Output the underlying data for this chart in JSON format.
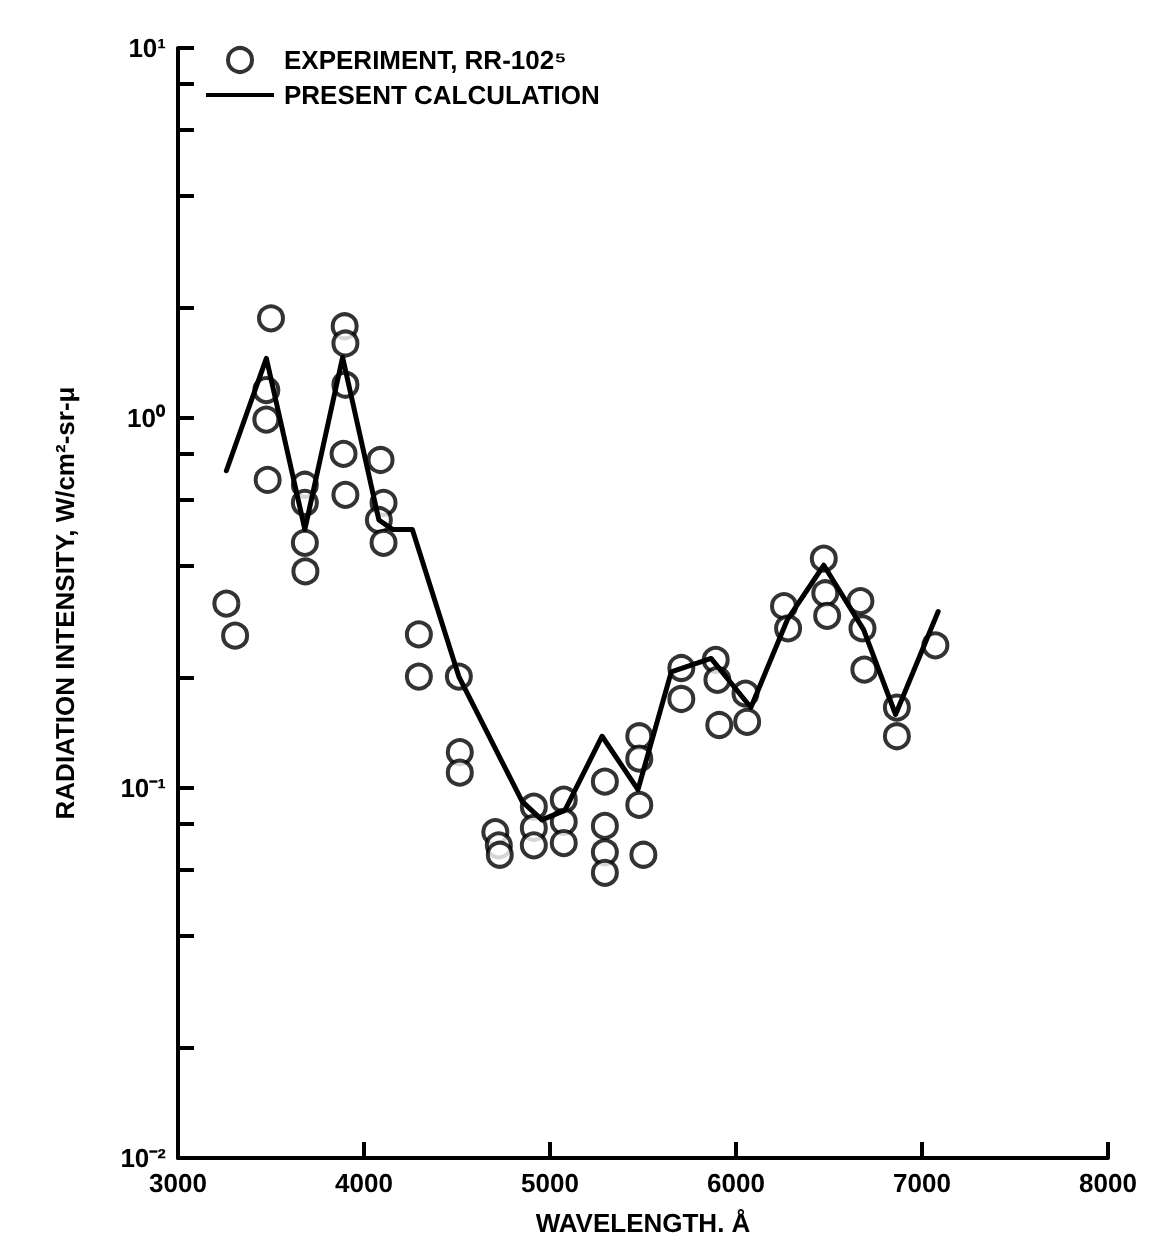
{
  "chart_data": {
    "type": "scatter",
    "xlabel": "WAVELENGTH. Å",
    "ylabel": "RADIATION INTENSITY, W/cm²-sr-μ",
    "log": "y",
    "grid": false,
    "legend": "top left",
    "xlim": [
      3000,
      8000
    ],
    "xticks": [
      3000,
      4000,
      5000,
      6000,
      7000,
      8000
    ],
    "ylim": [
      0.01,
      10
    ],
    "yticks": [
      {
        "value": 0.01,
        "label": "10⁻²"
      },
      {
        "value": 0.02,
        "label": null
      },
      {
        "value": 0.04,
        "label": null
      },
      {
        "value": 0.06,
        "label": null
      },
      {
        "value": 0.08,
        "label": null
      },
      {
        "value": 0.1,
        "label": "10⁻¹"
      },
      {
        "value": 0.2,
        "label": null
      },
      {
        "value": 0.4,
        "label": null
      },
      {
        "value": 0.6,
        "label": null
      },
      {
        "value": 0.8,
        "label": null
      },
      {
        "value": 1,
        "label": "10⁰"
      },
      {
        "value": 2,
        "label": null
      },
      {
        "value": 4,
        "label": null
      },
      {
        "value": 6,
        "label": null
      },
      {
        "value": 8,
        "label": null
      },
      {
        "value": 10,
        "label": "10¹"
      }
    ],
    "series": [
      {
        "name": "EXPERIMENT, RR-102⁵",
        "marker": "circle",
        "color": "#000000",
        "x": [
          3260,
          3307,
          3500,
          3475,
          3475,
          3482,
          3682,
          3682,
          3682,
          3685,
          3896,
          3900,
          3900,
          3890,
          3900,
          4089,
          4105,
          4080,
          4105,
          4295,
          4295,
          4510,
          4515,
          4515,
          4706,
          4725,
          4730,
          4913,
          4913,
          4913,
          5074,
          5074,
          5074,
          5295,
          5295,
          5295,
          5295,
          5502,
          5480,
          5480,
          5480,
          5706,
          5706,
          5891,
          5900,
          5910,
          6051,
          6060,
          6258,
          6280,
          6472,
          6480,
          6490,
          6669,
          6680,
          6690,
          6865,
          6865,
          7072
        ],
        "values": [
          0.315,
          0.258,
          1.86,
          1.19,
          0.99,
          0.68,
          0.66,
          0.59,
          0.46,
          0.385,
          1.77,
          1.59,
          1.23,
          0.8,
          0.62,
          0.77,
          0.59,
          0.53,
          0.46,
          0.26,
          0.2,
          0.2,
          0.125,
          0.11,
          0.076,
          0.07,
          0.066,
          0.089,
          0.078,
          0.07,
          0.093,
          0.081,
          0.071,
          0.104,
          0.079,
          0.067,
          0.059,
          0.066,
          0.138,
          0.12,
          0.09,
          0.211,
          0.174,
          0.222,
          0.196,
          0.148,
          0.18,
          0.151,
          0.31,
          0.27,
          0.417,
          0.336,
          0.292,
          0.32,
          0.27,
          0.209,
          0.165,
          0.138,
          0.243
        ]
      },
      {
        "name": "PRESENT CALCULATION",
        "type": "line",
        "marker": "none",
        "line_style": "solid",
        "color": "#000000",
        "x": [
          3260,
          3475,
          3682,
          3885,
          4080,
          4153,
          4260,
          4510,
          4850,
          4956,
          5080,
          5280,
          5473,
          5652,
          5866,
          6080,
          6276,
          6472,
          6686,
          6858,
          7087
        ],
        "values": [
          0.72,
          1.45,
          0.5,
          1.46,
          0.53,
          0.5,
          0.5,
          0.2,
          0.092,
          0.082,
          0.087,
          0.138,
          0.099,
          0.206,
          0.224,
          0.165,
          0.285,
          0.4,
          0.268,
          0.158,
          0.3
        ]
      }
    ]
  }
}
